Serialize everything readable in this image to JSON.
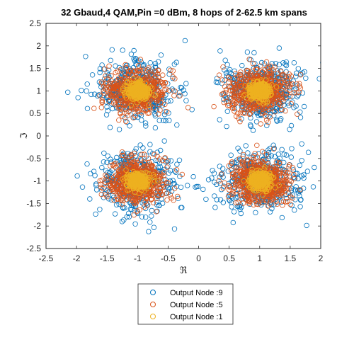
{
  "chart_data": {
    "type": "scatter",
    "title": "32 Gbaud,4 QAM,Pin =0 dBm, 8  hops of 2-62.5 km  spans",
    "xlabel": "ℜ",
    "ylabel": "ℑ",
    "xlim": [
      -2.5,
      2
    ],
    "ylim": [
      -2.5,
      2.5
    ],
    "x_ticks": [
      "-2.5",
      "-2",
      "-1.5",
      "-1",
      "-0.5",
      "0",
      "0.5",
      "1",
      "1.5",
      "2"
    ],
    "y_ticks": [
      "2.5",
      "2",
      "1.5",
      "1",
      "0.5",
      "0",
      "-0.5",
      "-1",
      "-1.5",
      "-2",
      "-2.5"
    ],
    "marker": "open-circle",
    "grid": false,
    "legend_position": "below-axes",
    "constellation_points": [
      [
        -1,
        1
      ],
      [
        1,
        1
      ],
      [
        -1,
        -1
      ],
      [
        1,
        -1
      ]
    ],
    "series": [
      {
        "name": "Output Node :9",
        "color": "#0072BD",
        "spread_std": 0.33,
        "points_per_symbol": 420,
        "draw_order": 1
      },
      {
        "name": "Output Node :5",
        "color": "#D95319",
        "spread_std": 0.24,
        "points_per_symbol": 560,
        "draw_order": 2
      },
      {
        "name": "Output Node :1",
        "color": "#EDB120",
        "spread_std": 0.09,
        "points_per_symbol": 340,
        "draw_order": 3
      }
    ]
  }
}
